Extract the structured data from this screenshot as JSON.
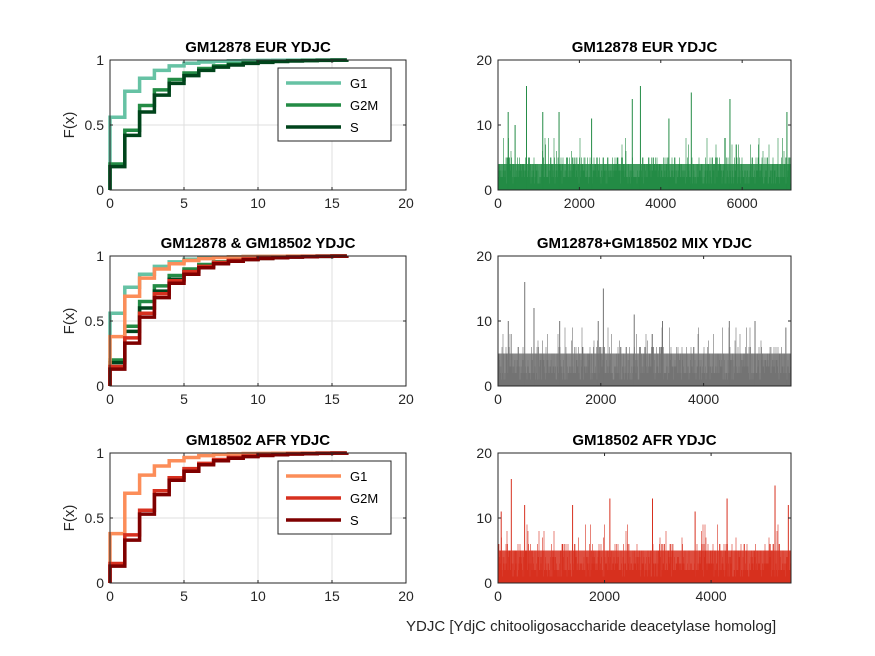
{
  "colors": {
    "eur_g1": "#66c2a4",
    "eur_g2m": "#238b45",
    "eur_s": "#00441b",
    "afr_g1": "#fc8d59",
    "afr_g2m": "#d7301f",
    "afr_s": "#7f0000",
    "mix": "#737373",
    "axis": "#262626",
    "grid": "#dfdfdf"
  },
  "footer_label": "YDJC [YdjC chitooligosaccharide deacetylase homolog]",
  "chart_data": [
    {
      "id": "cdf-eur",
      "type": "line",
      "title": "GM12878 EUR YDJC",
      "xlabel": "",
      "ylabel": "F(x)",
      "xlim": [
        0,
        20
      ],
      "ylim": [
        0,
        1
      ],
      "xticks": [
        0,
        5,
        10,
        15,
        20
      ],
      "yticks": [
        0,
        0.5,
        1
      ],
      "grid": true,
      "legend": "top-right",
      "step": true,
      "series": [
        {
          "name": "G1",
          "color": "eur_g1",
          "x": [
            0,
            1,
            2,
            3,
            4,
            5,
            6,
            7,
            8,
            9,
            10,
            11,
            12,
            13,
            14,
            15,
            16
          ],
          "values": [
            0.56,
            0.76,
            0.86,
            0.92,
            0.955,
            0.975,
            0.985,
            0.99,
            0.994,
            0.996,
            0.997,
            0.998,
            0.999,
            0.999,
            1.0,
            1.0,
            1.0
          ]
        },
        {
          "name": "G2M",
          "color": "eur_g2m",
          "x": [
            0,
            1,
            2,
            3,
            4,
            5,
            6,
            7,
            8,
            9,
            10,
            11,
            12,
            13,
            14,
            15,
            16
          ],
          "values": [
            0.2,
            0.46,
            0.65,
            0.77,
            0.85,
            0.9,
            0.935,
            0.955,
            0.968,
            0.978,
            0.985,
            0.99,
            0.994,
            0.996,
            0.998,
            0.999,
            1.0
          ]
        },
        {
          "name": "S",
          "color": "eur_s",
          "x": [
            0,
            1,
            2,
            3,
            4,
            5,
            6,
            7,
            8,
            9,
            10,
            11,
            12,
            13,
            14,
            15,
            16
          ],
          "values": [
            0.18,
            0.42,
            0.6,
            0.73,
            0.82,
            0.88,
            0.92,
            0.945,
            0.962,
            0.974,
            0.982,
            0.988,
            0.992,
            0.995,
            0.997,
            0.999,
            1.0
          ]
        }
      ]
    },
    {
      "id": "bars-eur",
      "type": "bar",
      "title": "GM12878 EUR YDJC",
      "xlabel": "",
      "ylabel": "",
      "xlim": [
        0,
        7200
      ],
      "ylim": [
        0,
        20
      ],
      "xticks": [
        0,
        2000,
        4000,
        6000
      ],
      "yticks": [
        0,
        10,
        20
      ],
      "grid": false,
      "color": "eur_g2m",
      "n": 7200,
      "typical_max": 5,
      "peaks": [
        {
          "x": 250,
          "y": 12
        },
        {
          "x": 420,
          "y": 10
        },
        {
          "x": 700,
          "y": 16
        },
        {
          "x": 1100,
          "y": 12
        },
        {
          "x": 1500,
          "y": 12
        },
        {
          "x": 2300,
          "y": 11
        },
        {
          "x": 3300,
          "y": 14
        },
        {
          "x": 3500,
          "y": 16
        },
        {
          "x": 4200,
          "y": 11
        },
        {
          "x": 4750,
          "y": 15
        },
        {
          "x": 5700,
          "y": 14
        },
        {
          "x": 7100,
          "y": 12
        }
      ]
    },
    {
      "id": "cdf-mix",
      "type": "line",
      "title": "GM12878 & GM18502 YDJC",
      "xlabel": "",
      "ylabel": "F(x)",
      "xlim": [
        0,
        20
      ],
      "ylim": [
        0,
        1
      ],
      "xticks": [
        0,
        5,
        10,
        15,
        20
      ],
      "yticks": [
        0,
        0.5,
        1
      ],
      "grid": true,
      "legend": "",
      "step": true,
      "series": [
        {
          "color": "eur_g1",
          "x": [
            0,
            1,
            2,
            3,
            4,
            5,
            6,
            7,
            8,
            9,
            10,
            11,
            12,
            13,
            14,
            15,
            16
          ],
          "values": [
            0.56,
            0.76,
            0.86,
            0.92,
            0.955,
            0.975,
            0.985,
            0.99,
            0.994,
            0.996,
            0.997,
            0.998,
            0.999,
            0.999,
            1.0,
            1.0,
            1.0
          ]
        },
        {
          "color": "eur_g2m",
          "x": [
            0,
            1,
            2,
            3,
            4,
            5,
            6,
            7,
            8,
            9,
            10,
            11,
            12,
            13,
            14,
            15,
            16
          ],
          "values": [
            0.2,
            0.46,
            0.65,
            0.77,
            0.85,
            0.9,
            0.935,
            0.955,
            0.968,
            0.978,
            0.985,
            0.99,
            0.994,
            0.996,
            0.998,
            0.999,
            1.0
          ]
        },
        {
          "color": "eur_s",
          "x": [
            0,
            1,
            2,
            3,
            4,
            5,
            6,
            7,
            8,
            9,
            10,
            11,
            12,
            13,
            14,
            15,
            16
          ],
          "values": [
            0.18,
            0.42,
            0.6,
            0.73,
            0.82,
            0.88,
            0.92,
            0.945,
            0.962,
            0.974,
            0.982,
            0.988,
            0.992,
            0.995,
            0.997,
            0.999,
            1.0
          ]
        },
        {
          "color": "afr_g1",
          "x": [
            0,
            1,
            2,
            3,
            4,
            5,
            6,
            7,
            8,
            9,
            10,
            11,
            12,
            13,
            14,
            15,
            16
          ],
          "values": [
            0.38,
            0.69,
            0.83,
            0.9,
            0.94,
            0.965,
            0.98,
            0.988,
            0.993,
            0.996,
            0.997,
            0.998,
            0.999,
            0.999,
            1.0,
            1.0,
            1.0
          ]
        },
        {
          "color": "afr_g2m",
          "x": [
            0,
            1,
            2,
            3,
            4,
            5,
            6,
            7,
            8,
            9,
            10,
            11,
            12,
            13,
            14,
            15,
            16
          ],
          "values": [
            0.15,
            0.37,
            0.56,
            0.71,
            0.81,
            0.88,
            0.92,
            0.95,
            0.966,
            0.977,
            0.985,
            0.99,
            0.994,
            0.996,
            0.998,
            0.999,
            1.0
          ]
        },
        {
          "color": "afr_s",
          "x": [
            0,
            1,
            2,
            3,
            4,
            5,
            6,
            7,
            8,
            9,
            10,
            11,
            12,
            13,
            14,
            15,
            16
          ],
          "values": [
            0.13,
            0.33,
            0.53,
            0.68,
            0.79,
            0.86,
            0.91,
            0.94,
            0.96,
            0.972,
            0.981,
            0.987,
            0.991,
            0.994,
            0.997,
            0.999,
            1.0
          ]
        }
      ]
    },
    {
      "id": "bars-mix",
      "type": "bar",
      "title": "GM12878+GM18502 MIX YDJC",
      "xlabel": "",
      "ylabel": "",
      "xlim": [
        0,
        5700
      ],
      "ylim": [
        0,
        20
      ],
      "xticks": [
        0,
        2000,
        4000
      ],
      "yticks": [
        0,
        10,
        20
      ],
      "grid": false,
      "color": "mix",
      "n": 5700,
      "typical_max": 6,
      "peaks": [
        {
          "x": 200,
          "y": 10
        },
        {
          "x": 520,
          "y": 16
        },
        {
          "x": 700,
          "y": 12
        },
        {
          "x": 1200,
          "y": 10
        },
        {
          "x": 1950,
          "y": 10
        },
        {
          "x": 2050,
          "y": 15
        },
        {
          "x": 2650,
          "y": 11
        },
        {
          "x": 3200,
          "y": 10
        },
        {
          "x": 4500,
          "y": 10
        },
        {
          "x": 5000,
          "y": 10
        },
        {
          "x": 5600,
          "y": 9
        }
      ]
    },
    {
      "id": "cdf-afr",
      "type": "line",
      "title": "GM18502 AFR YDJC",
      "xlabel": "",
      "ylabel": "F(x)",
      "xlim": [
        0,
        20
      ],
      "ylim": [
        0,
        1
      ],
      "xticks": [
        0,
        5,
        10,
        15,
        20
      ],
      "yticks": [
        0,
        0.5,
        1
      ],
      "grid": true,
      "legend": "top-right",
      "step": true,
      "series": [
        {
          "name": "G1",
          "color": "afr_g1",
          "x": [
            0,
            1,
            2,
            3,
            4,
            5,
            6,
            7,
            8,
            9,
            10,
            11,
            12,
            13,
            14,
            15,
            16
          ],
          "values": [
            0.38,
            0.69,
            0.83,
            0.9,
            0.94,
            0.965,
            0.98,
            0.988,
            0.993,
            0.996,
            0.997,
            0.998,
            0.999,
            0.999,
            1.0,
            1.0,
            1.0
          ]
        },
        {
          "name": "G2M",
          "color": "afr_g2m",
          "x": [
            0,
            1,
            2,
            3,
            4,
            5,
            6,
            7,
            8,
            9,
            10,
            11,
            12,
            13,
            14,
            15,
            16
          ],
          "values": [
            0.15,
            0.37,
            0.56,
            0.71,
            0.81,
            0.88,
            0.92,
            0.95,
            0.966,
            0.977,
            0.985,
            0.99,
            0.994,
            0.996,
            0.998,
            0.999,
            1.0
          ]
        },
        {
          "name": "S",
          "color": "afr_s",
          "x": [
            0,
            1,
            2,
            3,
            4,
            5,
            6,
            7,
            8,
            9,
            10,
            11,
            12,
            13,
            14,
            15,
            16
          ],
          "values": [
            0.13,
            0.33,
            0.53,
            0.68,
            0.79,
            0.86,
            0.91,
            0.94,
            0.96,
            0.972,
            0.981,
            0.987,
            0.991,
            0.994,
            0.997,
            0.999,
            1.0
          ]
        }
      ]
    },
    {
      "id": "bars-afr",
      "type": "bar",
      "title": "GM18502 AFR YDJC",
      "xlabel": "",
      "ylabel": "",
      "xlim": [
        0,
        5500
      ],
      "ylim": [
        0,
        20
      ],
      "xticks": [
        0,
        2000,
        4000
      ],
      "yticks": [
        0,
        10,
        20
      ],
      "grid": false,
      "color": "afr_g2m",
      "n": 5500,
      "typical_max": 6,
      "peaks": [
        {
          "x": 60,
          "y": 11
        },
        {
          "x": 250,
          "y": 16
        },
        {
          "x": 500,
          "y": 12
        },
        {
          "x": 1400,
          "y": 12
        },
        {
          "x": 2100,
          "y": 13
        },
        {
          "x": 2900,
          "y": 13
        },
        {
          "x": 3700,
          "y": 11
        },
        {
          "x": 4300,
          "y": 13
        },
        {
          "x": 5200,
          "y": 15
        },
        {
          "x": 5450,
          "y": 12
        }
      ]
    }
  ]
}
